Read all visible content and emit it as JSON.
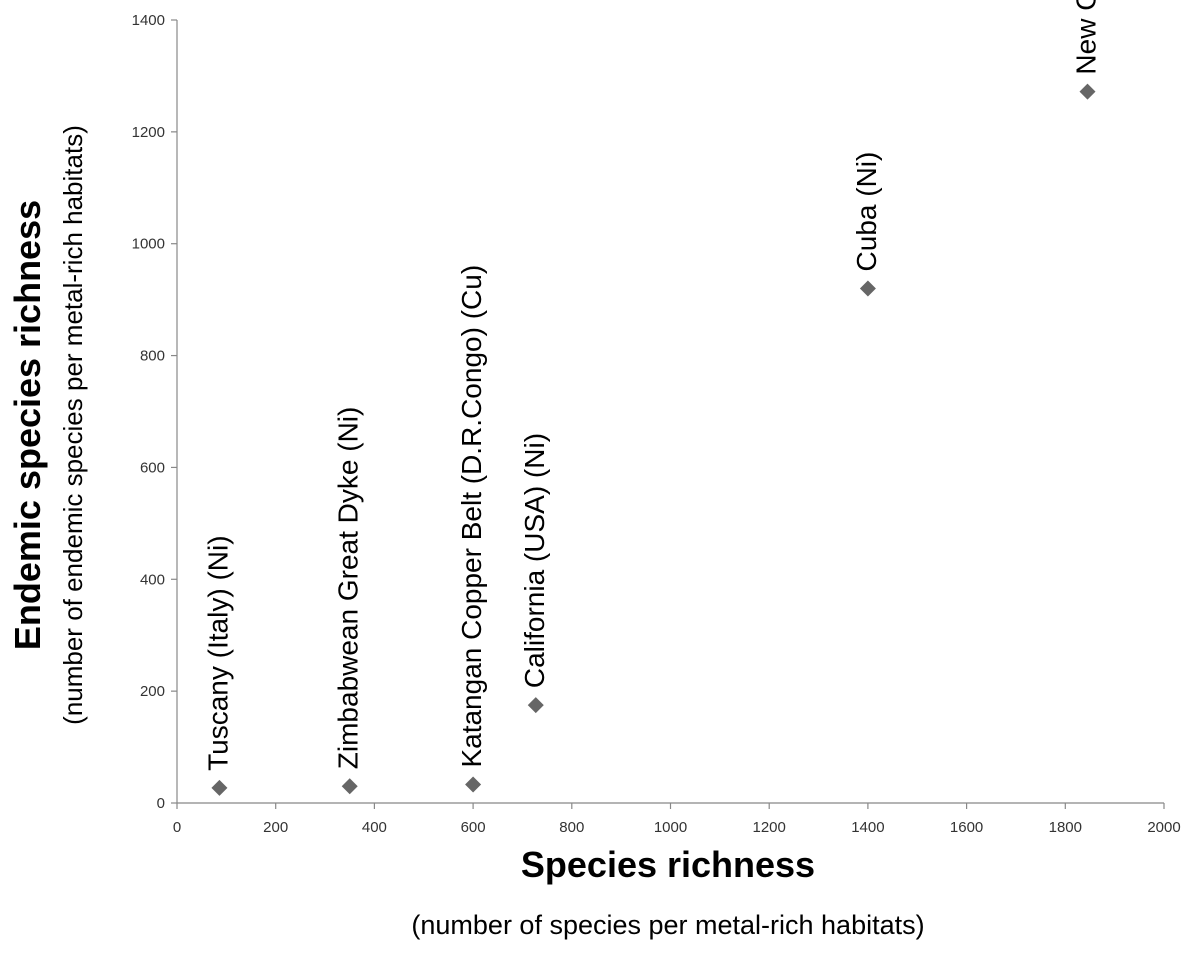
{
  "chart_data": {
    "type": "scatter",
    "xlabel": "Species richness",
    "xlabel_sub": "(number of species per metal-rich habitats)",
    "ylabel": "Endemic species richness",
    "ylabel_sub": "(number of endemic  species  per metal-rich habitats)",
    "xlim": [
      0,
      2000
    ],
    "ylim": [
      0,
      1400
    ],
    "xticks": [
      "0",
      "200",
      "400",
      "600",
      "800",
      "1000",
      "1200",
      "1400",
      "1600",
      "1800",
      "2000"
    ],
    "yticks": [
      "0",
      "200",
      "400",
      "600",
      "800",
      "1000",
      "1200",
      "1400"
    ],
    "grid": false,
    "marker": "diamond",
    "marker_color": "#666666",
    "points": [
      {
        "label": "Tuscany  (Italy) (Ni)",
        "x": 86,
        "y": 27
      },
      {
        "label": "Zimbabwean Great Dyke (Ni)",
        "x": 350,
        "y": 30
      },
      {
        "label": "Katangan Copper Belt (D.R.Congo) (Cu)",
        "x": 600,
        "y": 33
      },
      {
        "label": "California (USA) (Ni)",
        "x": 727,
        "y": 175
      },
      {
        "label": "Cuba (Ni)",
        "x": 1400,
        "y": 920
      },
      {
        "label": "New Caledonia (Ni)",
        "x": 1845,
        "y": 1272
      }
    ]
  }
}
